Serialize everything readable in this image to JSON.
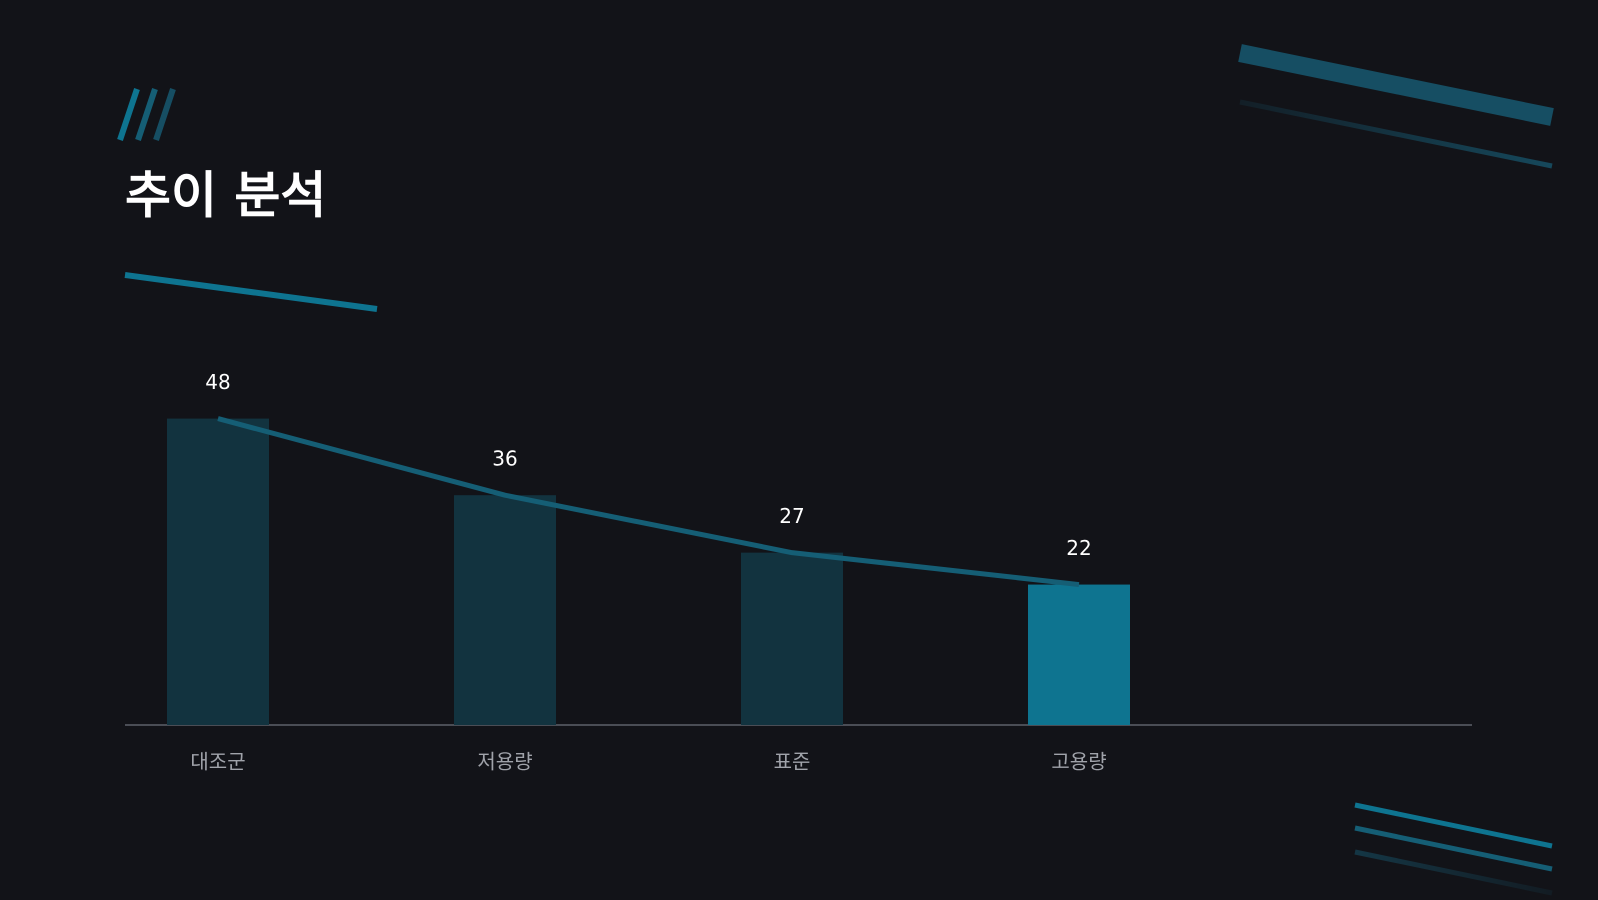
{
  "chart_data": {
    "type": "bar",
    "title": "추이 분석",
    "categories": [
      "대조군",
      "저용량",
      "표준",
      "고용량"
    ],
    "values": [
      48,
      36,
      27,
      22
    ],
    "colors": [
      "#12333f",
      "#12333f",
      "#12333f",
      "#0e7490"
    ],
    "line": true,
    "line_color": "#155e75",
    "ylim": [
      0,
      60
    ]
  }
}
